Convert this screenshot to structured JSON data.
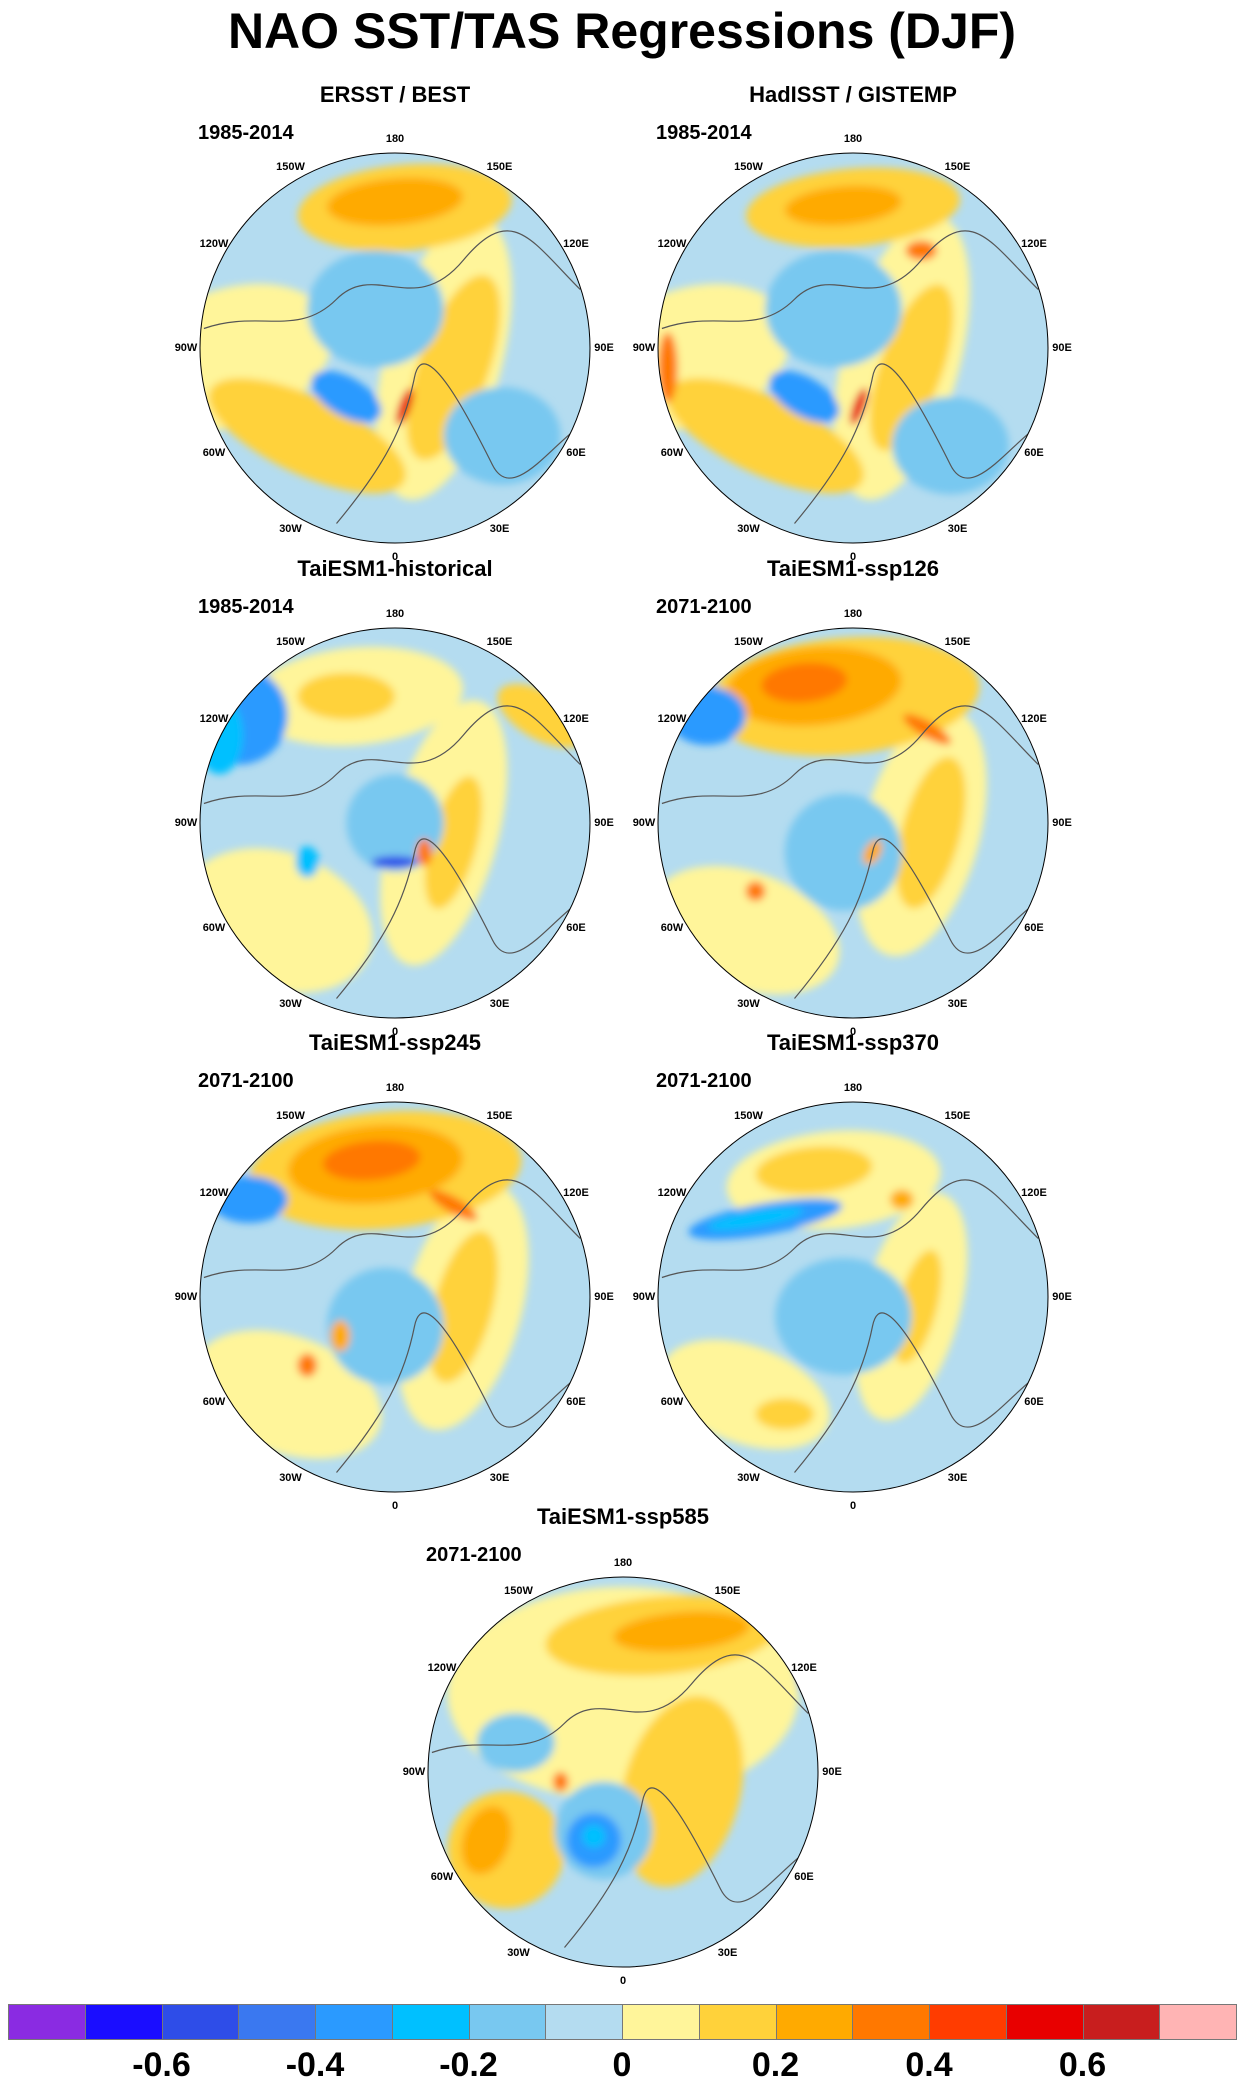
{
  "title": "NAO SST/TAS Regressions (DJF)",
  "panels": [
    {
      "title": "ERSST / BEST",
      "period": "1985-2014",
      "pattern": "obs1"
    },
    {
      "title": "HadISST / GISTEMP",
      "period": "1985-2014",
      "pattern": "obs2"
    },
    {
      "title": "TaiESM1-historical",
      "period": "1985-2014",
      "pattern": "hist"
    },
    {
      "title": "TaiESM1-ssp126",
      "period": "2071-2100",
      "pattern": "ssp126"
    },
    {
      "title": "TaiESM1-ssp245",
      "period": "2071-2100",
      "pattern": "ssp245"
    },
    {
      "title": "TaiESM1-ssp370",
      "period": "2071-2100",
      "pattern": "ssp370"
    },
    {
      "title": "TaiESM1-ssp585",
      "period": "2071-2100",
      "pattern": "ssp585"
    }
  ],
  "longitude_labels": [
    "180",
    "150E",
    "120E",
    "90E",
    "60E",
    "30E",
    "0",
    "30W",
    "60W",
    "90W",
    "120W",
    "150W"
  ],
  "colorbar": {
    "colors": [
      "#8a2be2",
      "#1a0dff",
      "#2e4de8",
      "#3a78f0",
      "#2a9aff",
      "#00c0ff",
      "#78c8f0",
      "#b4dcf0",
      "#fff59a",
      "#ffd23a",
      "#ffaa00",
      "#ff7800",
      "#ff3c00",
      "#e80000",
      "#c81e1e",
      "#ffb4b4"
    ],
    "tick_labels": [
      "-0.6",
      "-0.4",
      "-0.2",
      "0",
      "0.2",
      "0.4",
      "0.6"
    ]
  }
}
